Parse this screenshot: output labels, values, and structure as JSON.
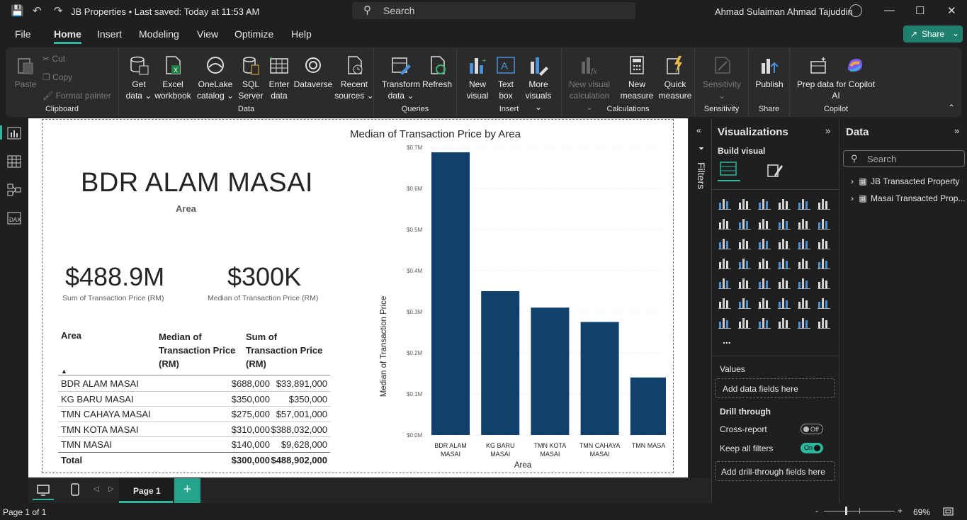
{
  "titlebar": {
    "doc_title": "JB Properties • Last saved: Today at 11:53 AM",
    "search_placeholder": "Search",
    "user_name": "Ahmad Sulaiman Ahmad Tajuddin"
  },
  "menu": {
    "tabs": [
      "File",
      "Home",
      "Insert",
      "Modeling",
      "View",
      "Optimize",
      "Help"
    ],
    "active": "Home",
    "share_label": "Share"
  },
  "ribbon": {
    "clipboard": {
      "paste": "Paste",
      "cut": "Cut",
      "copy": "Copy",
      "format_painter": "Format painter",
      "label": "Clipboard"
    },
    "data": {
      "get_data_1": "Get",
      "get_data_2": "data",
      "excel_1": "Excel",
      "excel_2": "workbook",
      "onelake_1": "OneLake",
      "onelake_2": "catalog",
      "sql_1": "SQL",
      "sql_2": "Server",
      "enter_1": "Enter",
      "enter_2": "data",
      "dataverse": "Dataverse",
      "recent_1": "Recent",
      "recent_2": "sources",
      "label": "Data"
    },
    "queries": {
      "transform_1": "Transform",
      "transform_2": "data",
      "refresh": "Refresh",
      "label": "Queries"
    },
    "insert": {
      "new_visual_1": "New",
      "new_visual_2": "visual",
      "text_box_1": "Text",
      "text_box_2": "box",
      "more_1": "More",
      "more_2": "visuals",
      "label": "Insert"
    },
    "calculations": {
      "new_calc_1": "New visual",
      "new_calc_2": "calculation",
      "new_measure_1": "New",
      "new_measure_2": "measure",
      "quick_1": "Quick",
      "quick_2": "measure",
      "label": "Calculations"
    },
    "sensitivity": {
      "btn": "Sensitivity",
      "label": "Sensitivity"
    },
    "share": {
      "publish": "Publish",
      "label": "Share"
    },
    "copilot": {
      "prep_1": "Prep data for Copilot",
      "prep_2": "AI",
      "label": "Copilot"
    }
  },
  "report": {
    "card_title": {
      "value": "BDR ALAM MASAI",
      "caption": "Area"
    },
    "kpi_sum": {
      "value": "$488.9M",
      "caption": "Sum of Transaction Price (RM)"
    },
    "kpi_median": {
      "value": "$300K",
      "caption": "Median of Transaction Price (RM)"
    },
    "table": {
      "headers": [
        "Area",
        "Median of Transaction Price (RM)",
        "Sum of Transaction Price (RM)"
      ],
      "header_lines": {
        "c1": "Area",
        "c2a": "Median of",
        "c2b": "Transaction Price",
        "c2c": "(RM)",
        "c3a": "Sum of",
        "c3b": "Transaction Price",
        "c3c": "(RM)"
      },
      "rows": [
        {
          "area": "BDR ALAM MASAI",
          "median": "$688,000",
          "sum": "$33,891,000"
        },
        {
          "area": "KG BARU MASAI",
          "median": "$350,000",
          "sum": "$350,000"
        },
        {
          "area": "TMN CAHAYA MASAI",
          "median": "$275,000",
          "sum": "$57,001,000"
        },
        {
          "area": "TMN KOTA MASAI",
          "median": "$310,000",
          "sum": "$388,032,000"
        },
        {
          "area": "TMN MASAI",
          "median": "$140,000",
          "sum": "$9,628,000"
        }
      ],
      "total": {
        "area": "Total",
        "median": "$300,000",
        "sum": "$488,902,000"
      }
    }
  },
  "chart_data": {
    "type": "bar",
    "title": "Median of Transaction Price by Area",
    "xlabel": "Area",
    "ylabel": "Median of Transaction Price",
    "categories": [
      [
        "BDR ALAM",
        "MASAI"
      ],
      [
        "KG BARU",
        "MASAI"
      ],
      [
        "TMN KOTA",
        "MASAI"
      ],
      [
        "TMN CAHAYA",
        "MASAI"
      ],
      [
        "TMN MASAI"
      ]
    ],
    "values": [
      688000,
      350000,
      310000,
      275000,
      140000
    ],
    "y_ticks": [
      "$0.0M",
      "$0.1M",
      "$0.2M",
      "$0.3M",
      "$0.4M",
      "$0.5M",
      "$0.6M",
      "$0.7M"
    ],
    "ylim": [
      0,
      700000
    ],
    "bar_color": "#12406c",
    "grid": true
  },
  "filters": {
    "label": "Filters"
  },
  "visualizations": {
    "title": "Visualizations",
    "build_visual": "Build visual",
    "values_label": "Values",
    "add_fields": "Add data fields here",
    "drill_through": "Drill through",
    "cross_report": "Cross-report",
    "cross_report_state": "Off",
    "keep_filters": "Keep all filters",
    "keep_filters_state": "On",
    "add_drill": "Add drill-through fields here",
    "more": "..."
  },
  "data_pane": {
    "title": "Data",
    "search_placeholder": "Search",
    "tables": [
      "JB Transacted Property",
      "Masai Transacted Prop..."
    ]
  },
  "pages": {
    "current": "Page 1",
    "add": "+"
  },
  "status": {
    "page_info": "Page 1 of 1",
    "zoom": "69%"
  },
  "colors": {
    "accent": "#2fb59c",
    "share": "#1e7f6c",
    "bar": "#12406c"
  }
}
